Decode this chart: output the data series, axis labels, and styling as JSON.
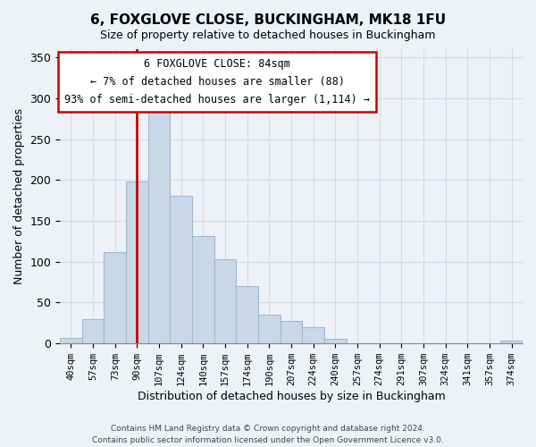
{
  "title": "6, FOXGLOVE CLOSE, BUCKINGHAM, MK18 1FU",
  "subtitle": "Size of property relative to detached houses in Buckingham",
  "xlabel": "Distribution of detached houses by size in Buckingham",
  "ylabel": "Number of detached properties",
  "footer_lines": [
    "Contains HM Land Registry data © Crown copyright and database right 2024.",
    "Contains public sector information licensed under the Open Government Licence v3.0."
  ],
  "bin_labels": [
    "40sqm",
    "57sqm",
    "73sqm",
    "90sqm",
    "107sqm",
    "124sqm",
    "140sqm",
    "157sqm",
    "174sqm",
    "190sqm",
    "207sqm",
    "224sqm",
    "240sqm",
    "257sqm",
    "274sqm",
    "291sqm",
    "307sqm",
    "324sqm",
    "341sqm",
    "357sqm",
    "374sqm"
  ],
  "bar_values": [
    7,
    30,
    112,
    198,
    295,
    181,
    131,
    103,
    70,
    35,
    28,
    20,
    6,
    0,
    0,
    0,
    0,
    0,
    0,
    0,
    3
  ],
  "bar_color": "#c8d8e8",
  "bar_edge_color": "#a0b8cc",
  "vline_x_index": 3.0,
  "vline_color": "#cc0000",
  "vline_label": "6 FOXGLOVE CLOSE: 84sqm",
  "annotation_line1": "← 7% of detached houses are smaller (88)",
  "annotation_line2": "93% of semi-detached houses are larger (1,114) →",
  "annotation_box_color": "#ffffff",
  "annotation_box_edge_color": "#cc0000",
  "ylim": [
    0,
    360
  ],
  "yticks": [
    0,
    50,
    100,
    150,
    200,
    250,
    300,
    350
  ],
  "background_color": "#eef2f7",
  "grid_color": "#d0dce8"
}
